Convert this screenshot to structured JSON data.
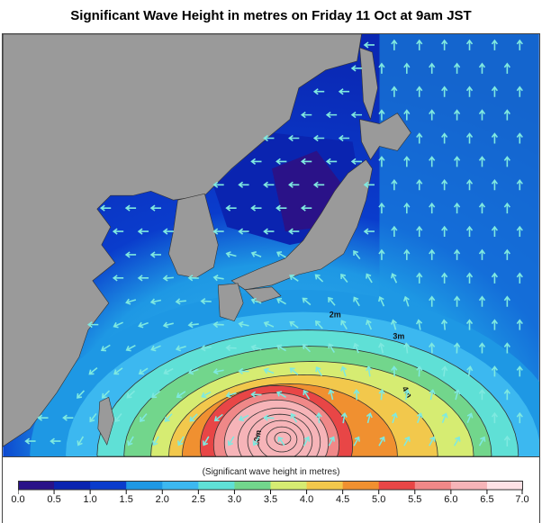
{
  "title": "Significant Wave Height in metres on Friday 11 Oct at 9am JST",
  "map": {
    "contour_labels": [
      "2m",
      "3m",
      "4m",
      "10m"
    ],
    "land_color": "#9a9a9a",
    "arrow_color": "#7fe9e0"
  },
  "colorbar": {
    "title": "(Significant wave height in metres)",
    "ticks": [
      "0.0",
      "0.5",
      "1.0",
      "1.5",
      "2.0",
      "2.5",
      "3.0",
      "3.5",
      "4.0",
      "4.5",
      "5.0",
      "5.5",
      "6.0",
      "6.5",
      "7.0"
    ],
    "colors": [
      "#2a1288",
      "#0a24b0",
      "#0a3ccc",
      "#1e98e4",
      "#3cb8f0",
      "#5fe0d6",
      "#72d68c",
      "#d6ec72",
      "#f2c84c",
      "#f09030",
      "#e84646",
      "#f08888",
      "#f6b4b8",
      "#fde2e6"
    ]
  }
}
